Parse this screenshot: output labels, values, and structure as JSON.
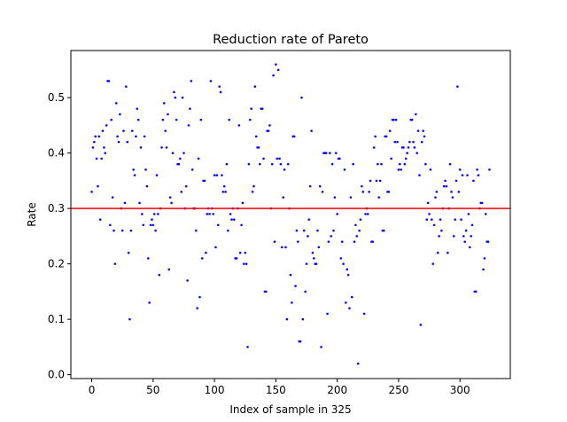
{
  "chart_data": {
    "type": "scatter",
    "title": "Reduction rate of Pareto",
    "xlabel": "Index of sample in 325",
    "ylabel": "Rate",
    "xlim": [
      -17,
      341
    ],
    "ylim": [
      -0.007,
      0.585
    ],
    "xticks": [
      0,
      50,
      100,
      150,
      200,
      250,
      300
    ],
    "yticks": [
      0.0,
      0.1,
      0.2,
      0.3,
      0.4,
      0.5
    ],
    "ytick_labels": [
      "0.0",
      "0.1",
      "0.2",
      "0.3",
      "0.4",
      "0.5"
    ],
    "grid": false,
    "legend": "none",
    "point_color": "#0000ff",
    "threshold": {
      "value": 0.3,
      "color": "#ff0000"
    },
    "series": [
      {
        "x": [
          0,
          1,
          2,
          3,
          4,
          5,
          6,
          7,
          8,
          9,
          10,
          11,
          12,
          13,
          14,
          15,
          16,
          17,
          18,
          19,
          20,
          21,
          22,
          23,
          24,
          25,
          26,
          27,
          28,
          29,
          30,
          31,
          32,
          33,
          34,
          35,
          36,
          37,
          38,
          39,
          40,
          41,
          42,
          43,
          44,
          45,
          46,
          47,
          48,
          49,
          50,
          51,
          52,
          53,
          54,
          55,
          56,
          57,
          58,
          59,
          60,
          61,
          62,
          63,
          64,
          65,
          66,
          67,
          68,
          69,
          70,
          71,
          72,
          73,
          74,
          75,
          76,
          77,
          78,
          79,
          80,
          81,
          82,
          83,
          84,
          85,
          86,
          87,
          88,
          89,
          90,
          91,
          92,
          93,
          94,
          95,
          96,
          97,
          98,
          99,
          100,
          101,
          102,
          103,
          104,
          105,
          106,
          107,
          108,
          109,
          110,
          111,
          112,
          113,
          114,
          115,
          116,
          117,
          118,
          119,
          120,
          121,
          122,
          123,
          124,
          125,
          126,
          127,
          128,
          129,
          130,
          131,
          132,
          133,
          134,
          135,
          136,
          137,
          138,
          139,
          140,
          141,
          142,
          143,
          144,
          145,
          146,
          147,
          148,
          149,
          150,
          151,
          152,
          153,
          154,
          155,
          156,
          157,
          158,
          159,
          160,
          161,
          162,
          163,
          164,
          165,
          166,
          167,
          168,
          169,
          170,
          171,
          172,
          173,
          174,
          175,
          176,
          177,
          178,
          179,
          180,
          181,
          182,
          183,
          184,
          185,
          186,
          187,
          188,
          189,
          190,
          191,
          192,
          193,
          194,
          195,
          196,
          197,
          198,
          199,
          200,
          201,
          202,
          203,
          204,
          205,
          206,
          207,
          208,
          209,
          210,
          211,
          212,
          213,
          214,
          215,
          216,
          217,
          218,
          219,
          220,
          221,
          222,
          223,
          224,
          225,
          226,
          227,
          228,
          229,
          230,
          231,
          232,
          233,
          234,
          235,
          236,
          237,
          238,
          239,
          240,
          241,
          242,
          243,
          244,
          245,
          246,
          247,
          248,
          249,
          250,
          251,
          252,
          253,
          254,
          255,
          256,
          257,
          258,
          259,
          260,
          261,
          262,
          263,
          264,
          265,
          266,
          267,
          268,
          269,
          270,
          271,
          272,
          273,
          274,
          275,
          276,
          277,
          278,
          279,
          280,
          281,
          282,
          283,
          284,
          285,
          286,
          287,
          288,
          289,
          290,
          291,
          292,
          293,
          294,
          295,
          296,
          297,
          298,
          299,
          300,
          301,
          302,
          303,
          304,
          305,
          306,
          307,
          308,
          309,
          310,
          311,
          312,
          313,
          314,
          315,
          316,
          317,
          318,
          319,
          320,
          321,
          322,
          323,
          324
        ],
        "y": [
          0.33,
          0.41,
          0.42,
          0.43,
          0.39,
          0.34,
          0.43,
          0.28,
          0.39,
          0.44,
          0.41,
          0.4,
          0.45,
          0.53,
          0.53,
          0.27,
          0.46,
          0.32,
          0.26,
          0.2,
          0.49,
          0.43,
          0.42,
          0.47,
          0.3,
          0.26,
          0.44,
          0.31,
          0.52,
          0.42,
          0.22,
          0.1,
          0.26,
          0.44,
          0.37,
          0.36,
          0.43,
          0.48,
          0.46,
          0.31,
          0.41,
          0.29,
          0.27,
          0.43,
          0.37,
          0.34,
          0.21,
          0.13,
          0.27,
          0.28,
          0.27,
          0.29,
          0.26,
          0.36,
          0.29,
          0.18,
          0.3,
          0.41,
          0.46,
          0.49,
          0.44,
          0.41,
          0.47,
          0.19,
          0.32,
          0.31,
          0.4,
          0.51,
          0.5,
          0.46,
          0.38,
          0.38,
          0.39,
          0.33,
          0.5,
          0.4,
          0.3,
          0.34,
          0.17,
          0.45,
          0.48,
          0.53,
          0.37,
          0.3,
          0.3,
          0.26,
          0.12,
          0.39,
          0.14,
          0.46,
          0.21,
          0.35,
          0.35,
          0.22,
          0.29,
          0.3,
          0.29,
          0.53,
          0.3,
          0.29,
          0.36,
          0.23,
          0.36,
          0.27,
          0.52,
          0.51,
          0.36,
          0.33,
          0.34,
          0.33,
          0.38,
          0.26,
          0.46,
          0.29,
          0.28,
          0.3,
          0.28,
          0.21,
          0.21,
          0.3,
          0.45,
          0.22,
          0.27,
          0.31,
          0.2,
          0.22,
          0.2,
          0.05,
          0.38,
          0.46,
          0.48,
          0.33,
          0.34,
          0.52,
          0.43,
          0.41,
          0.41,
          0.38,
          0.48,
          0.48,
          0.39,
          0.15,
          0.15,
          0.44,
          0.44,
          0.45,
          0.3,
          0.38,
          0.54,
          0.24,
          0.56,
          0.39,
          0.55,
          0.39,
          0.38,
          0.23,
          0.32,
          0.37,
          0.23,
          0.1,
          0.38,
          0.3,
          0.18,
          0.13,
          0.43,
          0.43,
          0.16,
          0.26,
          0.24,
          0.06,
          0.06,
          0.5,
          0.1,
          0.26,
          0.15,
          0.2,
          0.25,
          0.28,
          0.34,
          0.44,
          0.22,
          0.21,
          0.2,
          0.2,
          0.26,
          0.23,
          0.34,
          0.05,
          0.33,
          0.4,
          0.4,
          0.4,
          0.11,
          0.24,
          0.4,
          0.25,
          0.38,
          0.26,
          0.32,
          0.4,
          0.29,
          0.39,
          0.39,
          0.21,
          0.24,
          0.2,
          0.37,
          0.13,
          0.19,
          0.18,
          0.12,
          0.32,
          0.14,
          0.38,
          0.24,
          0.27,
          0.25,
          0.02,
          0.26,
          0.28,
          0.34,
          0.33,
          0.11,
          0.29,
          0.3,
          0.29,
          0.33,
          0.35,
          0.24,
          0.24,
          0.41,
          0.43,
          0.35,
          0.38,
          0.32,
          0.35,
          0.38,
          0.26,
          0.26,
          0.43,
          0.43,
          0.33,
          0.33,
          0.44,
          0.39,
          0.46,
          0.46,
          0.42,
          0.46,
          0.42,
          0.37,
          0.38,
          0.37,
          0.41,
          0.41,
          0.38,
          0.39,
          0.4,
          0.41,
          0.42,
          0.46,
          0.46,
          0.42,
          0.41,
          0.47,
          0.4,
          0.44,
          0.36,
          0.09,
          0.42,
          0.44,
          0.43,
          0.38,
          0.28,
          0.31,
          0.29,
          0.37,
          0.28,
          0.2,
          0.27,
          0.32,
          0.33,
          0.22,
          0.25,
          0.28,
          0.26,
          0.3,
          0.34,
          0.35,
          0.34,
          0.22,
          0.3,
          0.38,
          0.33,
          0.32,
          0.25,
          0.28,
          0.35,
          0.52,
          0.33,
          0.37,
          0.28,
          0.36,
          0.25,
          0.24,
          0.26,
          0.36,
          0.29,
          0.23,
          0.25,
          0.27,
          0.35,
          0.15,
          0.15,
          0.37,
          0.36,
          0.3,
          0.31,
          0.31,
          0.19,
          0.21,
          0.29,
          0.24,
          0.24,
          0.37
        ]
      }
    ]
  }
}
